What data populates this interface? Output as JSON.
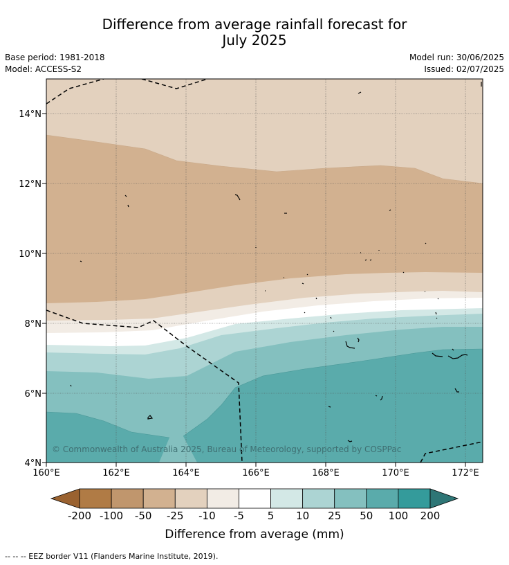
{
  "title_line1": "Difference from average rainfall forecast for",
  "title_line2": "July 2025",
  "base_period": "Base period: 1981-2018",
  "model": "Model: ACCESS-S2",
  "model_run": "Model run: 30/06/2025",
  "issued": "Issued: 02/07/2025",
  "copyright": "© Commonwealth of Australia 2025, Bureau of Meteorology, supported by COSPPac",
  "lat_labels": [
    "14°N",
    "12°N",
    "10°N",
    "8°N",
    "6°N",
    "4°N"
  ],
  "lon_labels": [
    "160°E",
    "162°E",
    "164°E",
    "166°E",
    "168°E",
    "170°E",
    "172°E"
  ],
  "colorbar": {
    "title": "Difference from average (mm)",
    "tick_labels": [
      "-200",
      "-100",
      "-50",
      "-25",
      "-10",
      "-5",
      "5",
      "10",
      "25",
      "50",
      "100",
      "200"
    ],
    "colors": [
      "#9a6230",
      "#b07b45",
      "#c0966d",
      "#d2b190",
      "#e3d1be",
      "#f2ece5",
      "#ffffff",
      "#d3e8e6",
      "#acd4d3",
      "#84c0bf",
      "#5aabab",
      "#349b9b",
      "#2e7676"
    ]
  },
  "footer": "--  --  -- EEZ border V11 (Flanders Marine Institute, 2019)."
}
